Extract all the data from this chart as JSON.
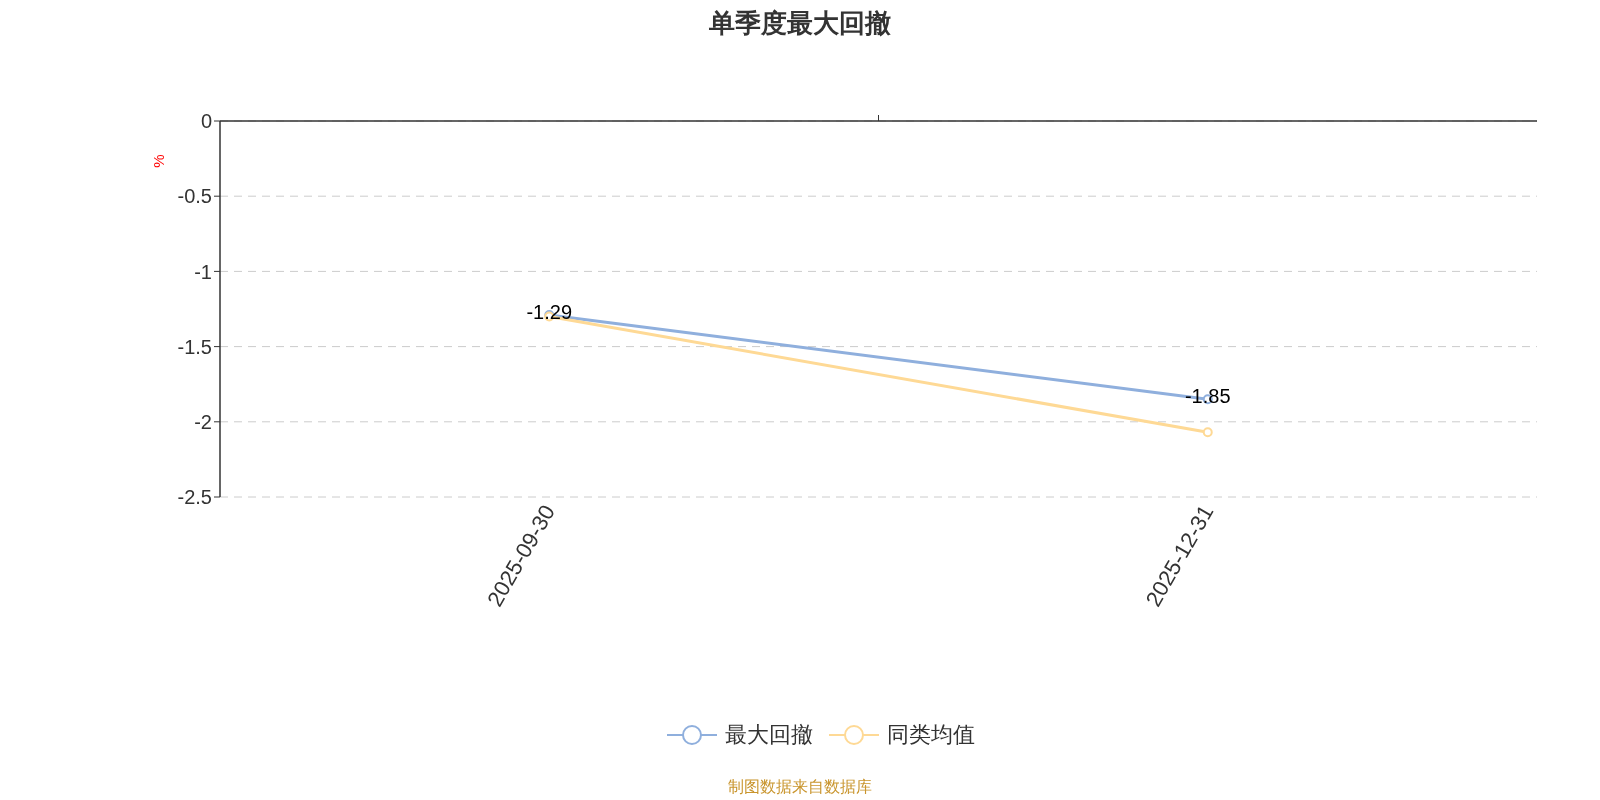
{
  "chart_data": {
    "type": "line",
    "title": "单季度最大回撤",
    "ylabel": "%",
    "categories": [
      "2025-09-30",
      "2025-12-31"
    ],
    "series": [
      {
        "name": "最大回撤",
        "color": "#8fafdd",
        "values": [
          -1.29,
          -1.85
        ],
        "value_labels": [
          "-1.29",
          "-1.85"
        ]
      },
      {
        "name": "同类均值",
        "color": "#fed995",
        "values": [
          -1.3,
          -2.07
        ]
      }
    ],
    "ylim": [
      -2.5,
      0
    ],
    "yticks": [
      -2.5,
      -2,
      -1.5,
      -1,
      -0.5,
      0
    ],
    "grid": "y",
    "legend": "bottom",
    "marker": "circle",
    "line_style": "solid",
    "annotations": [
      "制图数据来自数据库"
    ]
  }
}
